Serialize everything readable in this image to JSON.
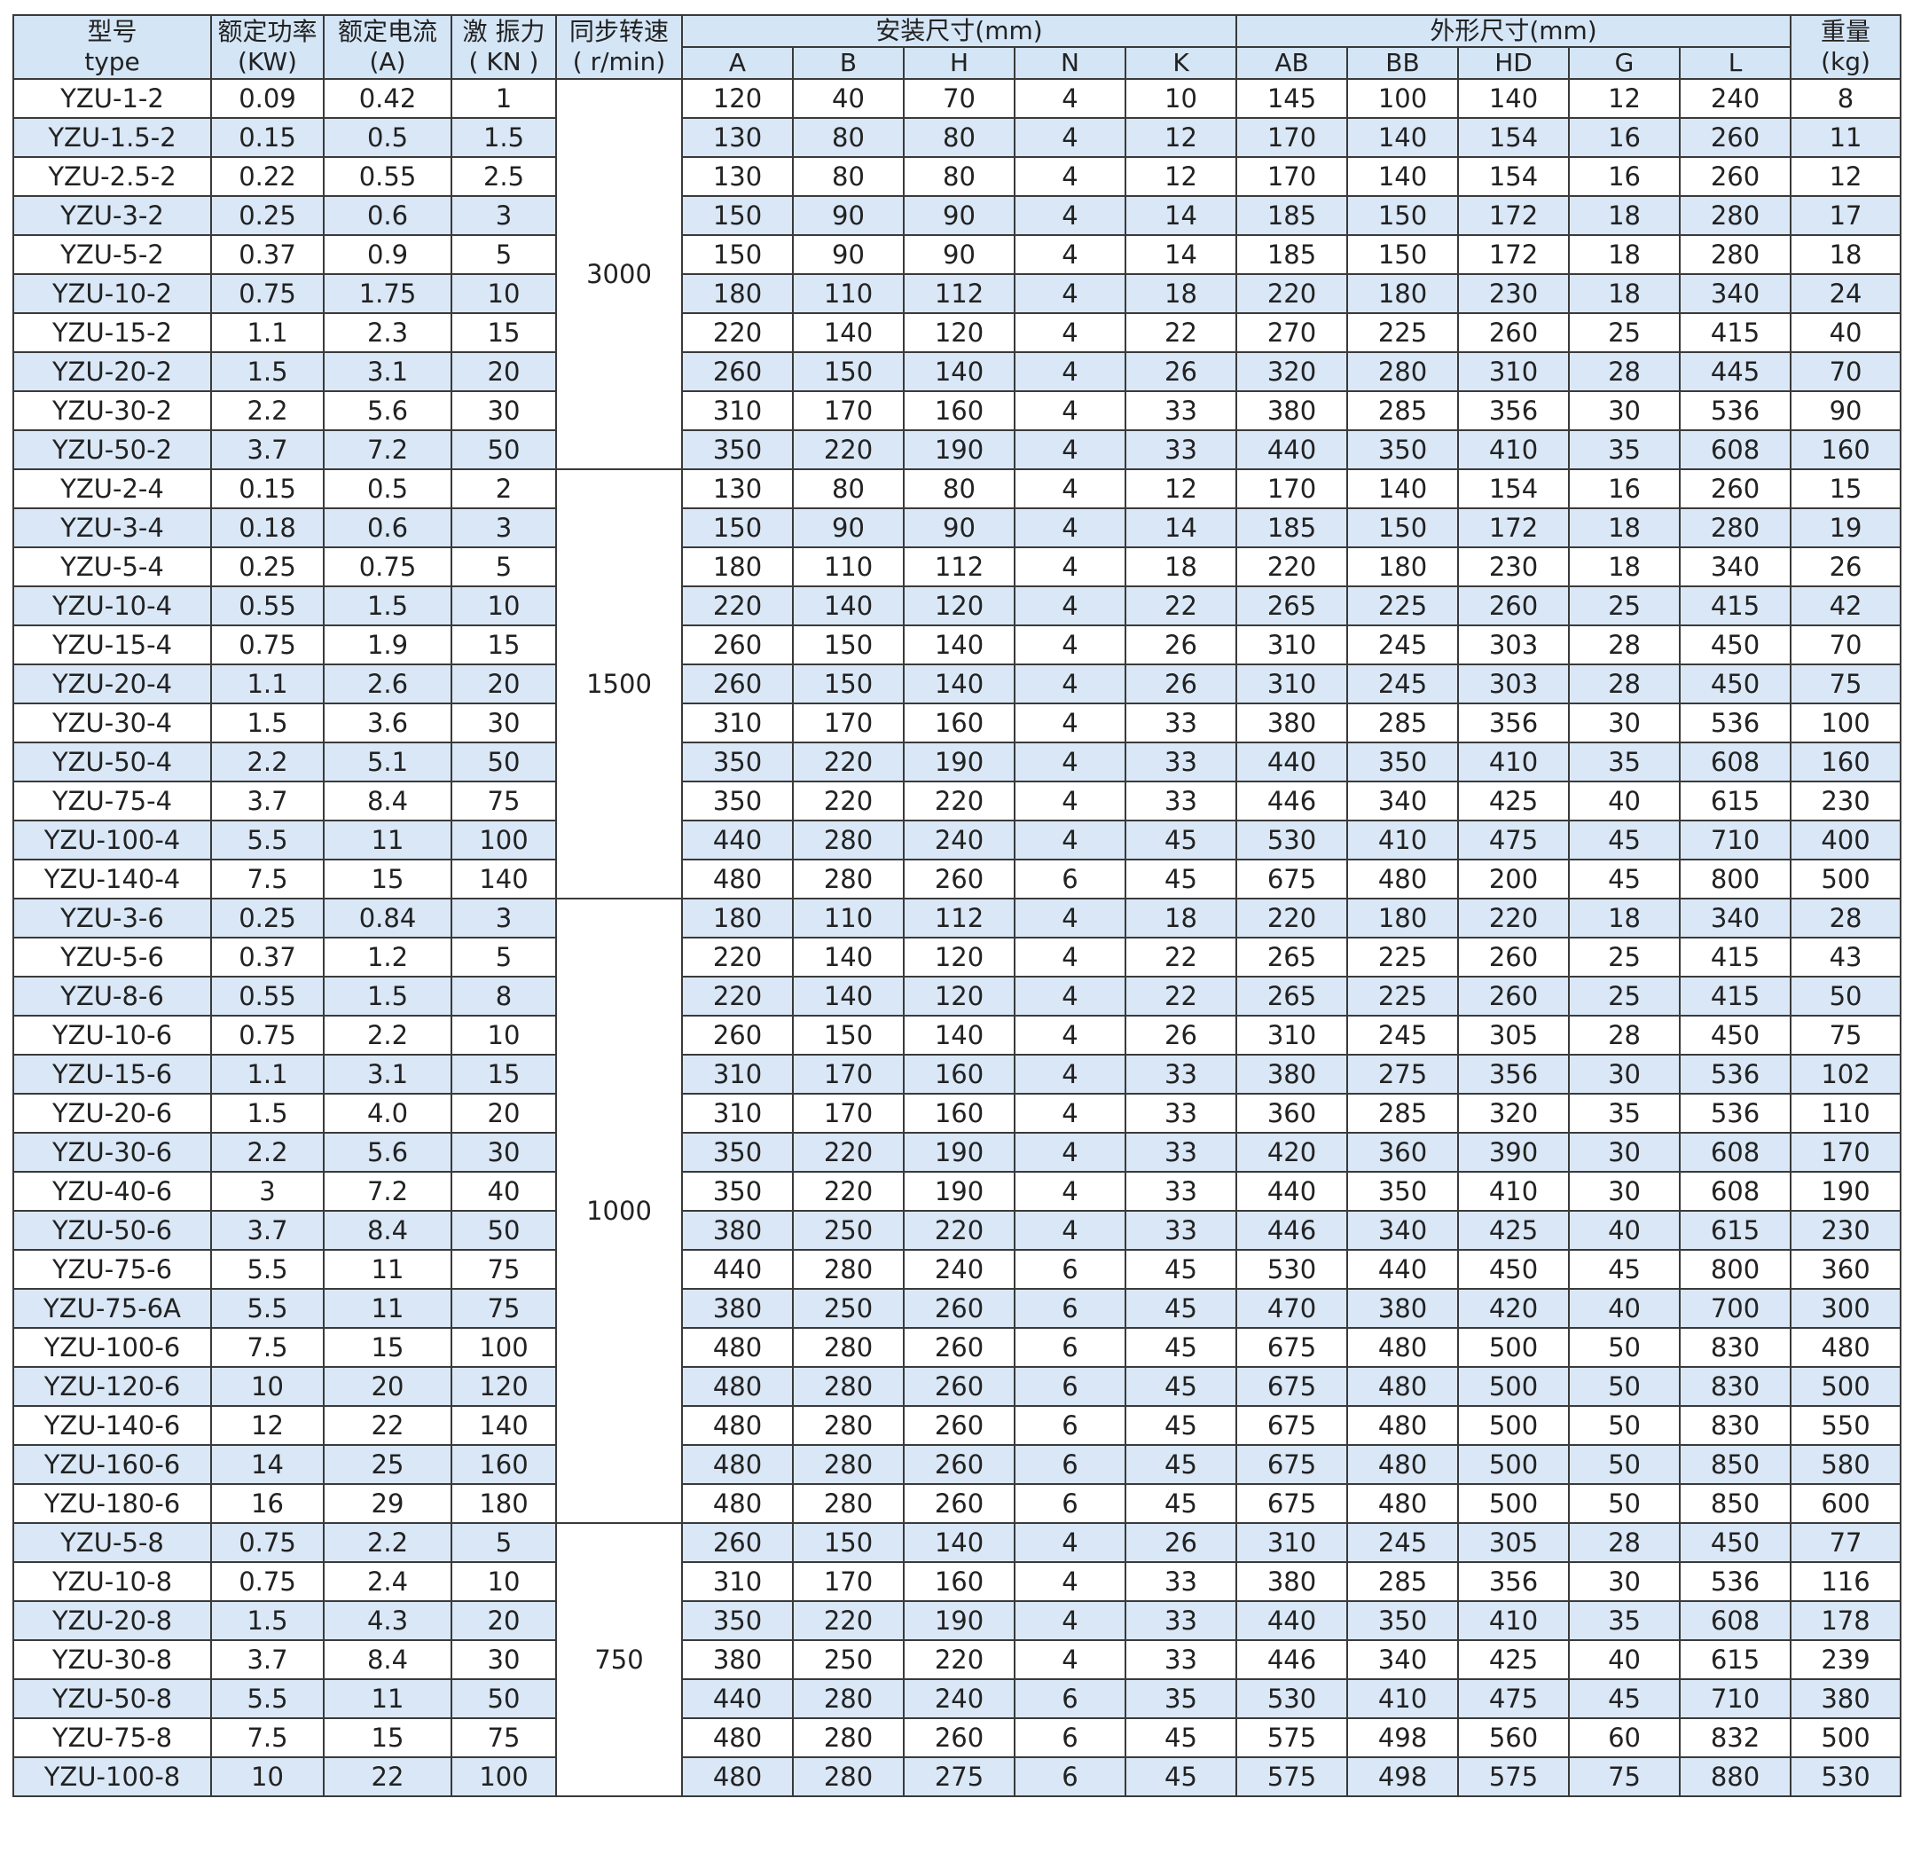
{
  "header": {
    "left": [
      [
        "型号",
        "type"
      ],
      [
        "额定功率",
        "(KW)"
      ],
      [
        "额定电流",
        "(A)"
      ],
      [
        "激 振力",
        "( KN )"
      ],
      [
        "同步转速",
        "( r/min)"
      ]
    ],
    "groups": [
      {
        "title": "安装尺寸(mm)",
        "subs": [
          "A",
          "B",
          "H",
          "N",
          "K"
        ]
      },
      {
        "title": "外形尺寸(mm)",
        "subs": [
          "AB",
          "BB",
          "HD",
          "G",
          "L"
        ]
      }
    ],
    "right": [
      "重量",
      "(kg)"
    ]
  },
  "groups": [
    {
      "speed": "3000",
      "rows": [
        [
          "YZU-1-2",
          "0.09",
          "0.42",
          "1",
          "120",
          "40",
          "70",
          "4",
          "10",
          "145",
          "100",
          "140",
          "12",
          "240",
          "8"
        ],
        [
          "YZU-1.5-2",
          "0.15",
          "0.5",
          "1.5",
          "130",
          "80",
          "80",
          "4",
          "12",
          "170",
          "140",
          "154",
          "16",
          "260",
          "11"
        ],
        [
          "YZU-2.5-2",
          "0.22",
          "0.55",
          "2.5",
          "130",
          "80",
          "80",
          "4",
          "12",
          "170",
          "140",
          "154",
          "16",
          "260",
          "12"
        ],
        [
          "YZU-3-2",
          "0.25",
          "0.6",
          "3",
          "150",
          "90",
          "90",
          "4",
          "14",
          "185",
          "150",
          "172",
          "18",
          "280",
          "17"
        ],
        [
          "YZU-5-2",
          "0.37",
          "0.9",
          "5",
          "150",
          "90",
          "90",
          "4",
          "14",
          "185",
          "150",
          "172",
          "18",
          "280",
          "18"
        ],
        [
          "YZU-10-2",
          "0.75",
          "1.75",
          "10",
          "180",
          "110",
          "112",
          "4",
          "18",
          "220",
          "180",
          "230",
          "18",
          "340",
          "24"
        ],
        [
          "YZU-15-2",
          "1.1",
          "2.3",
          "15",
          "220",
          "140",
          "120",
          "4",
          "22",
          "270",
          "225",
          "260",
          "25",
          "415",
          "40"
        ],
        [
          "YZU-20-2",
          "1.5",
          "3.1",
          "20",
          "260",
          "150",
          "140",
          "4",
          "26",
          "320",
          "280",
          "310",
          "28",
          "445",
          "70"
        ],
        [
          "YZU-30-2",
          "2.2",
          "5.6",
          "30",
          "310",
          "170",
          "160",
          "4",
          "33",
          "380",
          "285",
          "356",
          "30",
          "536",
          "90"
        ],
        [
          "YZU-50-2",
          "3.7",
          "7.2",
          "50",
          "350",
          "220",
          "190",
          "4",
          "33",
          "440",
          "350",
          "410",
          "35",
          "608",
          "160"
        ]
      ]
    },
    {
      "speed": "1500",
      "rows": [
        [
          "YZU-2-4",
          "0.15",
          "0.5",
          "2",
          "130",
          "80",
          "80",
          "4",
          "12",
          "170",
          "140",
          "154",
          "16",
          "260",
          "15"
        ],
        [
          "YZU-3-4",
          "0.18",
          "0.6",
          "3",
          "150",
          "90",
          "90",
          "4",
          "14",
          "185",
          "150",
          "172",
          "18",
          "280",
          "19"
        ],
        [
          "YZU-5-4",
          "0.25",
          "0.75",
          "5",
          "180",
          "110",
          "112",
          "4",
          "18",
          "220",
          "180",
          "230",
          "18",
          "340",
          "26"
        ],
        [
          "YZU-10-4",
          "0.55",
          "1.5",
          "10",
          "220",
          "140",
          "120",
          "4",
          "22",
          "265",
          "225",
          "260",
          "25",
          "415",
          "42"
        ],
        [
          "YZU-15-4",
          "0.75",
          "1.9",
          "15",
          "260",
          "150",
          "140",
          "4",
          "26",
          "310",
          "245",
          "303",
          "28",
          "450",
          "70"
        ],
        [
          "YZU-20-4",
          "1.1",
          "2.6",
          "20",
          "260",
          "150",
          "140",
          "4",
          "26",
          "310",
          "245",
          "303",
          "28",
          "450",
          "75"
        ],
        [
          "YZU-30-4",
          "1.5",
          "3.6",
          "30",
          "310",
          "170",
          "160",
          "4",
          "33",
          "380",
          "285",
          "356",
          "30",
          "536",
          "100"
        ],
        [
          "YZU-50-4",
          "2.2",
          "5.1",
          "50",
          "350",
          "220",
          "190",
          "4",
          "33",
          "440",
          "350",
          "410",
          "35",
          "608",
          "160"
        ],
        [
          "YZU-75-4",
          "3.7",
          "8.4",
          "75",
          "350",
          "220",
          "220",
          "4",
          "33",
          "446",
          "340",
          "425",
          "40",
          "615",
          "230"
        ],
        [
          "YZU-100-4",
          "5.5",
          "11",
          "100",
          "440",
          "280",
          "240",
          "4",
          "45",
          "530",
          "410",
          "475",
          "45",
          "710",
          "400"
        ],
        [
          "YZU-140-4",
          "7.5",
          "15",
          "140",
          "480",
          "280",
          "260",
          "6",
          "45",
          "675",
          "480",
          "200",
          "45",
          "800",
          "500"
        ]
      ]
    },
    {
      "speed": "1000",
      "rows": [
        [
          "YZU-3-6",
          "0.25",
          "0.84",
          "3",
          "180",
          "110",
          "112",
          "4",
          "18",
          "220",
          "180",
          "220",
          "18",
          "340",
          "28"
        ],
        [
          "YZU-5-6",
          "0.37",
          "1.2",
          "5",
          "220",
          "140",
          "120",
          "4",
          "22",
          "265",
          "225",
          "260",
          "25",
          "415",
          "43"
        ],
        [
          "YZU-8-6",
          "0.55",
          "1.5",
          "8",
          "220",
          "140",
          "120",
          "4",
          "22",
          "265",
          "225",
          "260",
          "25",
          "415",
          "50"
        ],
        [
          "YZU-10-6",
          "0.75",
          "2.2",
          "10",
          "260",
          "150",
          "140",
          "4",
          "26",
          "310",
          "245",
          "305",
          "28",
          "450",
          "75"
        ],
        [
          "YZU-15-6",
          "1.1",
          "3.1",
          "15",
          "310",
          "170",
          "160",
          "4",
          "33",
          "380",
          "275",
          "356",
          "30",
          "536",
          "102"
        ],
        [
          "YZU-20-6",
          "1.5",
          "4.0",
          "20",
          "310",
          "170",
          "160",
          "4",
          "33",
          "360",
          "285",
          "320",
          "35",
          "536",
          "110"
        ],
        [
          "YZU-30-6",
          "2.2",
          "5.6",
          "30",
          "350",
          "220",
          "190",
          "4",
          "33",
          "420",
          "360",
          "390",
          "30",
          "608",
          "170"
        ],
        [
          "YZU-40-6",
          "3",
          "7.2",
          "40",
          "350",
          "220",
          "190",
          "4",
          "33",
          "440",
          "350",
          "410",
          "30",
          "608",
          "190"
        ],
        [
          "YZU-50-6",
          "3.7",
          "8.4",
          "50",
          "380",
          "250",
          "220",
          "4",
          "33",
          "446",
          "340",
          "425",
          "40",
          "615",
          "230"
        ],
        [
          "YZU-75-6",
          "5.5",
          "11",
          "75",
          "440",
          "280",
          "240",
          "6",
          "45",
          "530",
          "440",
          "450",
          "45",
          "800",
          "360"
        ],
        [
          "YZU-75-6A",
          "5.5",
          "11",
          "75",
          "380",
          "250",
          "260",
          "6",
          "45",
          "470",
          "380",
          "420",
          "40",
          "700",
          "300"
        ],
        [
          "YZU-100-6",
          "7.5",
          "15",
          "100",
          "480",
          "280",
          "260",
          "6",
          "45",
          "675",
          "480",
          "500",
          "50",
          "830",
          "480"
        ],
        [
          "YZU-120-6",
          "10",
          "20",
          "120",
          "480",
          "280",
          "260",
          "6",
          "45",
          "675",
          "480",
          "500",
          "50",
          "830",
          "500"
        ],
        [
          "YZU-140-6",
          "12",
          "22",
          "140",
          "480",
          "280",
          "260",
          "6",
          "45",
          "675",
          "480",
          "500",
          "50",
          "830",
          "550"
        ],
        [
          "YZU-160-6",
          "14",
          "25",
          "160",
          "480",
          "280",
          "260",
          "6",
          "45",
          "675",
          "480",
          "500",
          "50",
          "850",
          "580"
        ],
        [
          "YZU-180-6",
          "16",
          "29",
          "180",
          "480",
          "280",
          "260",
          "6",
          "45",
          "675",
          "480",
          "500",
          "50",
          "850",
          "600"
        ]
      ]
    },
    {
      "speed": "750",
      "rows": [
        [
          "YZU-5-8",
          "0.75",
          "2.2",
          "5",
          "260",
          "150",
          "140",
          "4",
          "26",
          "310",
          "245",
          "305",
          "28",
          "450",
          "77"
        ],
        [
          "YZU-10-8",
          "0.75",
          "2.4",
          "10",
          "310",
          "170",
          "160",
          "4",
          "33",
          "380",
          "285",
          "356",
          "30",
          "536",
          "116"
        ],
        [
          "YZU-20-8",
          "1.5",
          "4.3",
          "20",
          "350",
          "220",
          "190",
          "4",
          "33",
          "440",
          "350",
          "410",
          "35",
          "608",
          "178"
        ],
        [
          "YZU-30-8",
          "3.7",
          "8.4",
          "30",
          "380",
          "250",
          "220",
          "4",
          "33",
          "446",
          "340",
          "425",
          "40",
          "615",
          "239"
        ],
        [
          "YZU-50-8",
          "5.5",
          "11",
          "50",
          "440",
          "280",
          "240",
          "6",
          "35",
          "530",
          "410",
          "475",
          "45",
          "710",
          "380"
        ],
        [
          "YZU-75-8",
          "7.5",
          "15",
          "75",
          "480",
          "280",
          "260",
          "6",
          "45",
          "575",
          "498",
          "560",
          "60",
          "832",
          "500"
        ],
        [
          "YZU-100-8",
          "10",
          "22",
          "100",
          "480",
          "280",
          "275",
          "6",
          "45",
          "575",
          "498",
          "575",
          "75",
          "880",
          "530"
        ]
      ]
    }
  ]
}
